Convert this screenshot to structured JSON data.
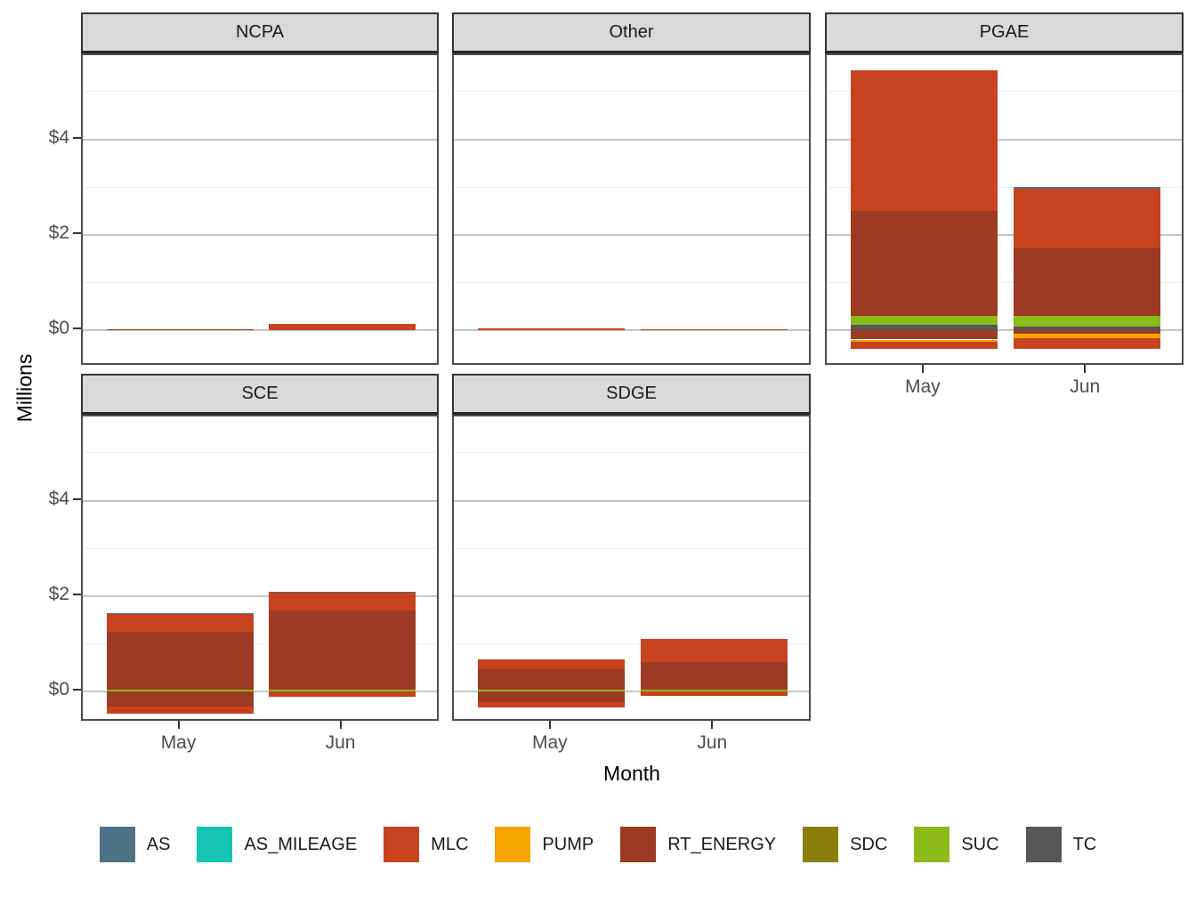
{
  "figure": {
    "y_axis_title": "Millions",
    "x_axis_title": "Month"
  },
  "chart_data": {
    "type": "bar",
    "stacked": true,
    "orientation": "vertical",
    "x_categories": [
      "May",
      "Jun"
    ],
    "y_unit": "millions of dollars",
    "y_ticks": {
      "labels": [
        "$0",
        "$2",
        "$4"
      ],
      "values": [
        0,
        2,
        4
      ]
    },
    "y_minor_gridlines": [
      1,
      3,
      5
    ],
    "ylim": [
      -0.76,
      5.8
    ],
    "facet_variable_values": [
      "NCPA",
      "Other",
      "PGAE",
      "SCE",
      "SDGE"
    ],
    "facets": [
      {
        "label": "NCPA",
        "row": 0,
        "col": 0,
        "x_axis": false,
        "bars": [
          {
            "month": "May",
            "segments": [
              {
                "code": "RT_ENERGY",
                "value": 0.03
              }
            ]
          },
          {
            "month": "Jun",
            "segments": [
              {
                "code": "MLC",
                "value": 0.14
              }
            ]
          }
        ]
      },
      {
        "label": "Other",
        "row": 0,
        "col": 1,
        "x_axis": false,
        "bars": [
          {
            "month": "May",
            "segments": [
              {
                "code": "MLC",
                "value": 0.05
              }
            ]
          },
          {
            "month": "Jun",
            "segments": [
              {
                "code": "MLC",
                "value": 0.03
              }
            ]
          }
        ]
      },
      {
        "label": "PGAE",
        "row": 0,
        "col": 2,
        "x_axis": true,
        "bars": [
          {
            "month": "May",
            "segments": [
              {
                "code": "TC",
                "value": 0.11
              },
              {
                "code": "SUC",
                "value": 0.2
              },
              {
                "code": "RT_ENERGY",
                "value": 2.19
              },
              {
                "code": "MLC",
                "value": 2.95
              },
              {
                "code": "RT_ENERGY",
                "value": -0.19
              },
              {
                "code": "PUMP",
                "value": -0.05
              },
              {
                "code": "MLC",
                "value": -0.15
              }
            ]
          },
          {
            "month": "Jun",
            "segments": [
              {
                "code": "TC",
                "value": 0.08
              },
              {
                "code": "SUC",
                "value": 0.22
              },
              {
                "code": "RT_ENERGY",
                "value": 1.42
              },
              {
                "code": "MLC",
                "value": 1.24
              },
              {
                "code": "AS",
                "value": 0.04
              },
              {
                "code": "RT_ENERGY",
                "value": -0.07
              },
              {
                "code": "PUMP",
                "value": -0.09
              },
              {
                "code": "MLC",
                "value": -0.22
              }
            ]
          }
        ]
      },
      {
        "label": "SCE",
        "row": 1,
        "col": 0,
        "x_axis": true,
        "bars": [
          {
            "month": "May",
            "segments": [
              {
                "code": "SUC",
                "value": 0.05
              },
              {
                "code": "RT_ENERGY",
                "value": 1.21
              },
              {
                "code": "MLC",
                "value": 0.36
              },
              {
                "code": "AS",
                "value": 0.03
              },
              {
                "code": "RT_ENERGY",
                "value": -0.3
              },
              {
                "code": "MLC",
                "value": -0.15
              }
            ]
          },
          {
            "month": "Jun",
            "segments": [
              {
                "code": "SUC",
                "value": 0.04
              },
              {
                "code": "RT_ENERGY",
                "value": 1.66
              },
              {
                "code": "MLC",
                "value": 0.37
              },
              {
                "code": "AS",
                "value": 0.03
              },
              {
                "code": "MLC",
                "value": -0.11
              }
            ]
          }
        ]
      },
      {
        "label": "SDGE",
        "row": 1,
        "col": 1,
        "x_axis": true,
        "bars": [
          {
            "month": "May",
            "segments": [
              {
                "code": "SUC",
                "value": 0.04
              },
              {
                "code": "RT_ENERGY",
                "value": 0.43
              },
              {
                "code": "MLC",
                "value": 0.2
              },
              {
                "code": "RT_ENERGY",
                "value": -0.22
              },
              {
                "code": "MLC",
                "value": -0.11
              }
            ]
          },
          {
            "month": "Jun",
            "segments": [
              {
                "code": "SUC",
                "value": 0.04
              },
              {
                "code": "RT_ENERGY",
                "value": 0.58
              },
              {
                "code": "MLC",
                "value": 0.49
              },
              {
                "code": "MLC",
                "value": -0.09
              }
            ]
          }
        ]
      }
    ]
  },
  "legend": {
    "items": [
      {
        "label": "AS",
        "color": "#4E7286"
      },
      {
        "label": "AS_MILEAGE",
        "color": "#16C4B4"
      },
      {
        "label": "MLC",
        "color": "#C7431F"
      },
      {
        "label": "PUMP",
        "color": "#F8A300"
      },
      {
        "label": "RT_ENERGY",
        "color": "#9C3A23"
      },
      {
        "label": "SDC",
        "color": "#8A7D0A"
      },
      {
        "label": "SUC",
        "color": "#8ABB17"
      },
      {
        "label": "TC",
        "color": "#575757"
      }
    ]
  }
}
